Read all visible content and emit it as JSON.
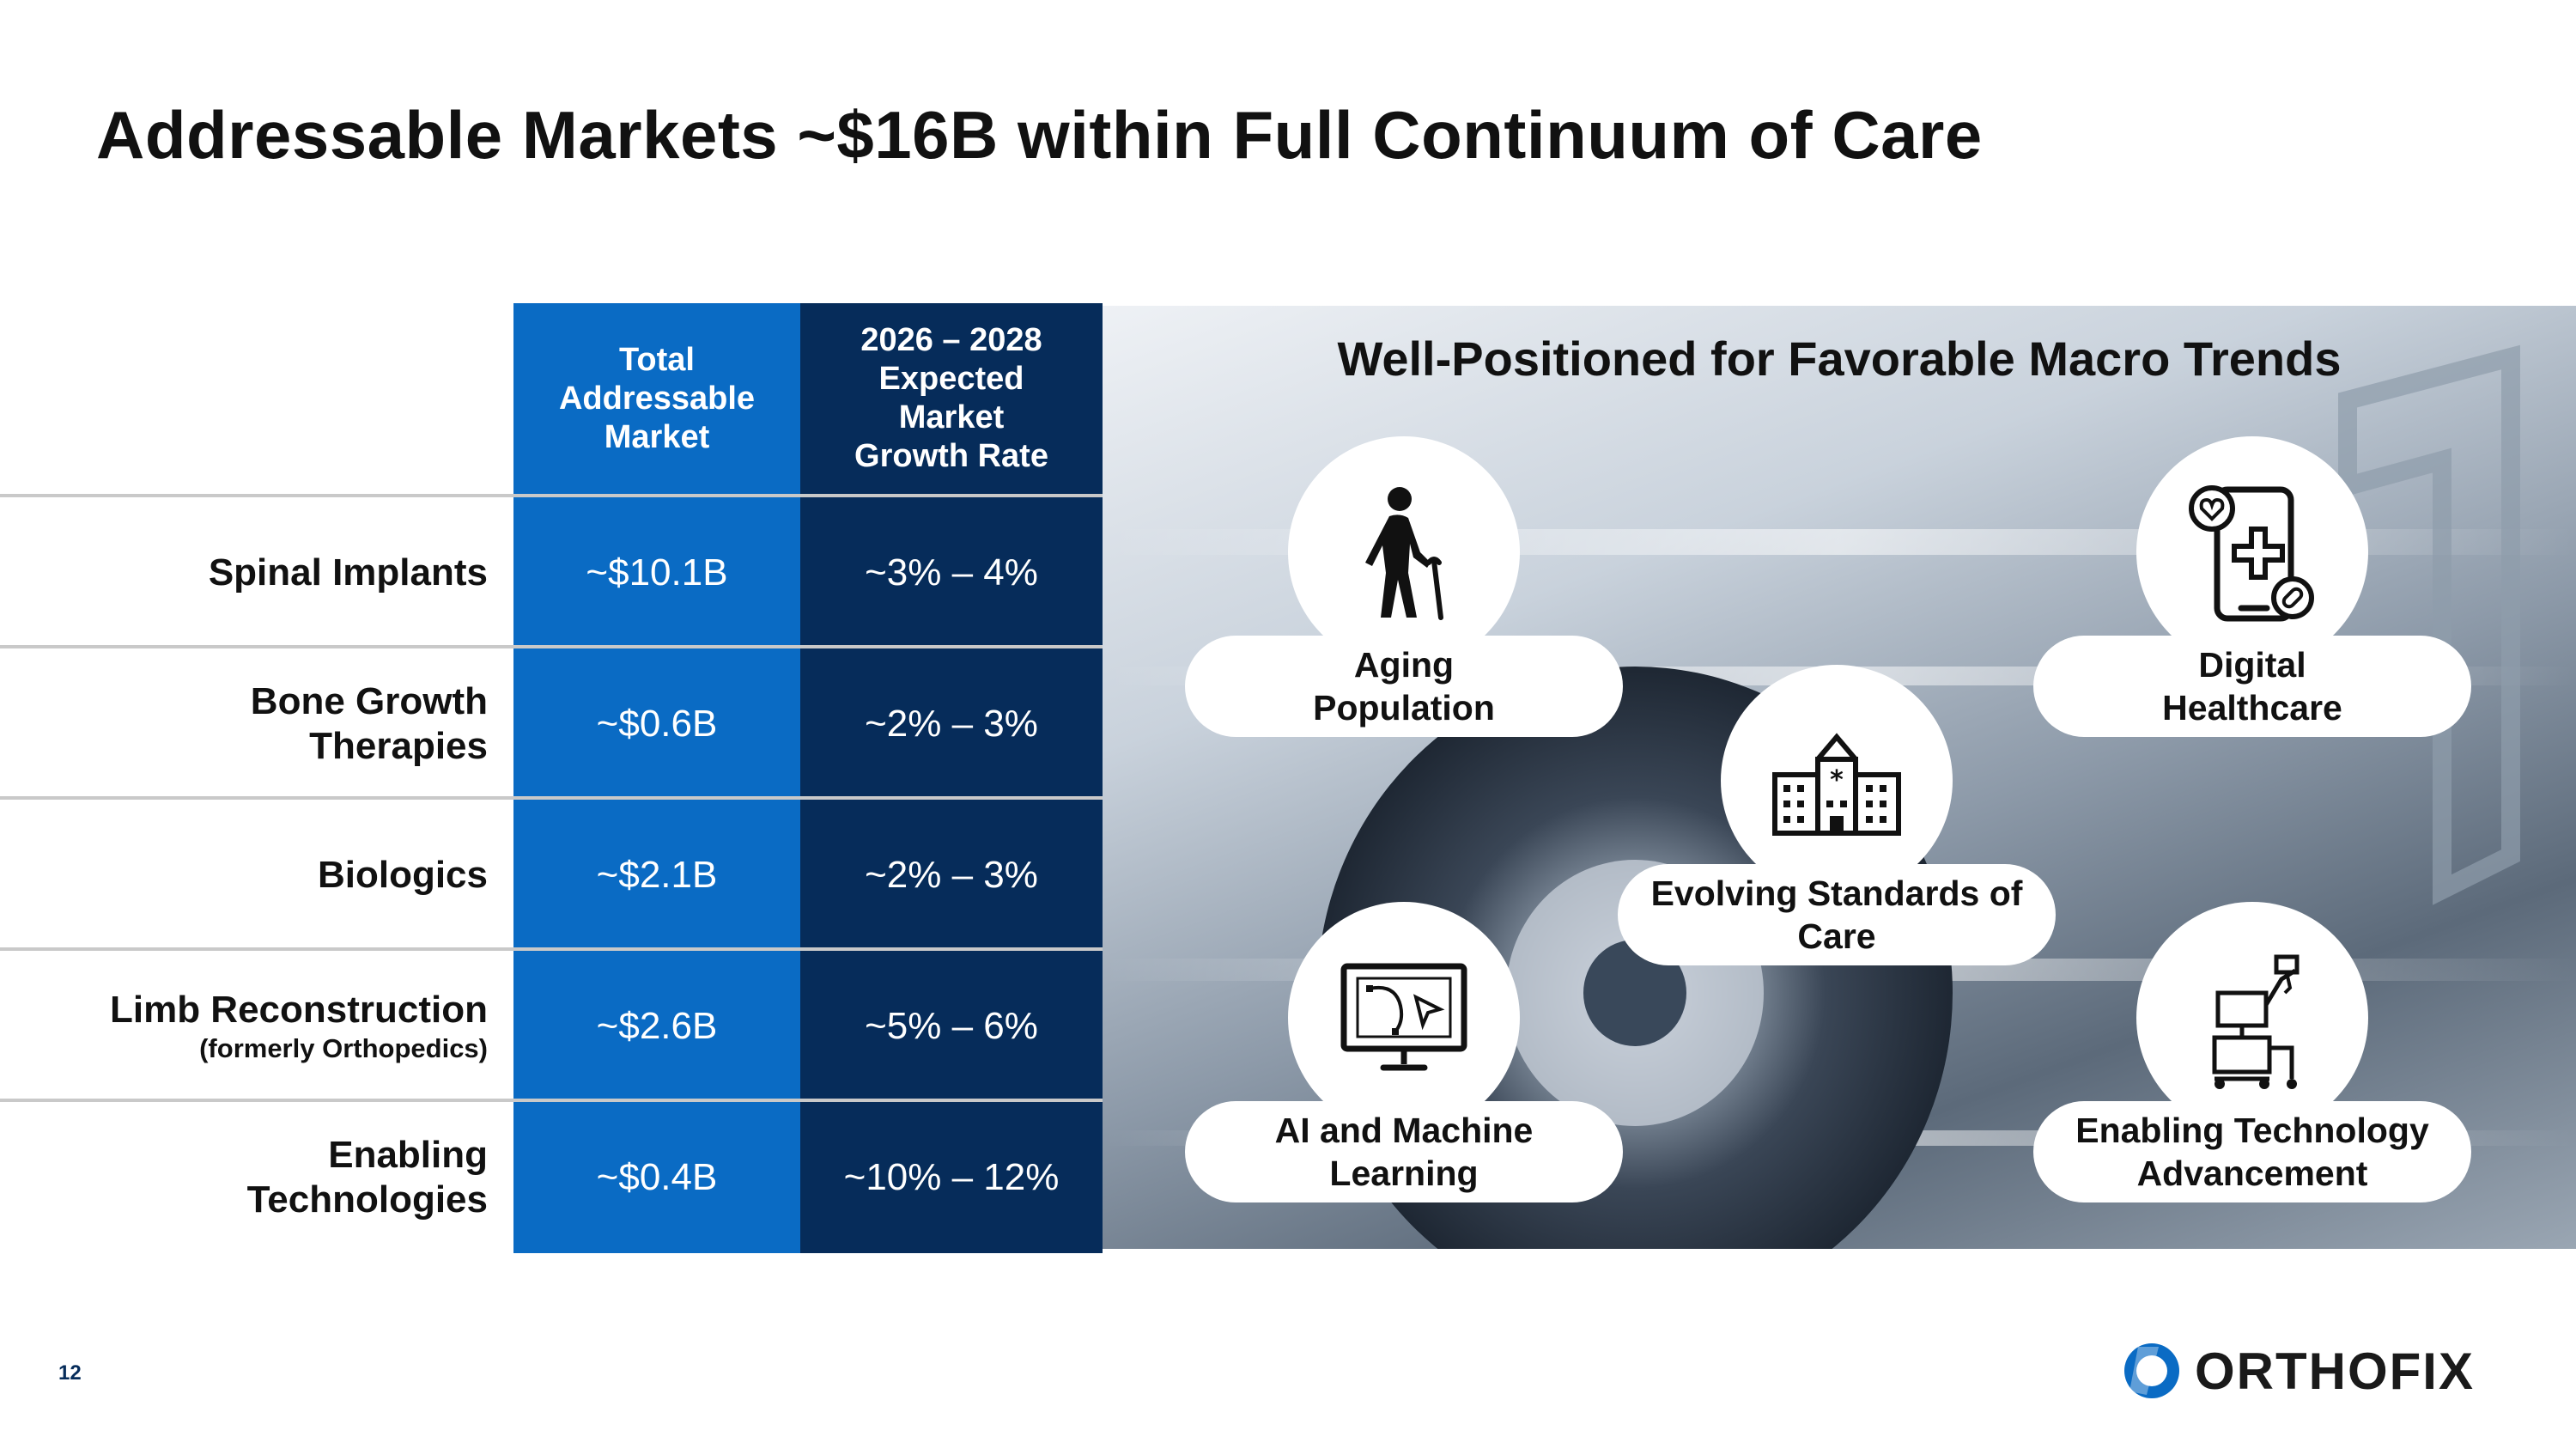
{
  "title": "Addressable Markets ~$16B within Full Continuum of Care",
  "table": {
    "col1_header": "Total Addressable Market",
    "col2_header": "2026 – 2028 Expected Market Growth Rate",
    "rows": [
      {
        "label": "Spinal Implants",
        "sub": "",
        "tam": "~$10.1B",
        "growth": "~3% – 4%"
      },
      {
        "label": "Bone Growth Therapies",
        "sub": "",
        "tam": "~$0.6B",
        "growth": "~2% – 3%"
      },
      {
        "label": "Biologics",
        "sub": "",
        "tam": "~$2.1B",
        "growth": "~2% – 3%"
      },
      {
        "label": "Limb Reconstruction",
        "sub": "(formerly Orthopedics)",
        "tam": "~$2.6B",
        "growth": "~5% – 6%"
      },
      {
        "label": "Enabling Technologies",
        "sub": "",
        "tam": "~$0.4B",
        "growth": "~10% – 12%"
      }
    ]
  },
  "trends": {
    "title": "Well-Positioned for Favorable Macro Trends",
    "items": [
      {
        "label": "Aging Population",
        "icon": "elderly-person-icon"
      },
      {
        "label": "Digital Healthcare",
        "icon": "phone-health-icon"
      },
      {
        "label": "Evolving Standards of Care",
        "icon": "hospital-icon"
      },
      {
        "label": "AI and Machine Learning",
        "icon": "monitor-cursor-icon"
      },
      {
        "label": "Enabling Technology Advancement",
        "icon": "robotic-cart-icon"
      }
    ]
  },
  "footer": {
    "page_number": "12",
    "logo_text": "ORTHOFIX"
  },
  "colors": {
    "primary_blue": "#0a6bc4",
    "dark_navy": "#062c5a"
  }
}
